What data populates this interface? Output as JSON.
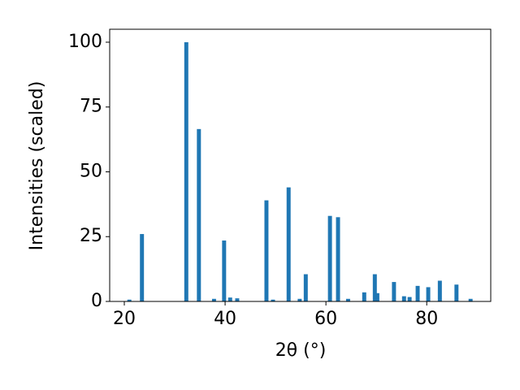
{
  "chart_data": {
    "type": "bar",
    "x_label": "2θ (°)",
    "y_label": "Intensities (scaled)",
    "x": [
      21.0,
      23.5,
      32.3,
      34.8,
      37.8,
      39.8,
      41.0,
      42.4,
      48.2,
      49.5,
      52.6,
      54.8,
      56.0,
      60.8,
      62.4,
      64.4,
      67.6,
      69.7,
      70.2,
      73.5,
      75.5,
      76.6,
      78.2,
      80.3,
      82.6,
      85.9,
      88.7
    ],
    "values": [
      0.7,
      26,
      100,
      66.5,
      1,
      23.5,
      1.5,
      1.2,
      39,
      0.7,
      44,
      1,
      10.5,
      33,
      32.5,
      1,
      3.5,
      10.5,
      3.2,
      7.5,
      2,
      1.7,
      6,
      5.5,
      8,
      6.5,
      1
    ],
    "color": "#1f77b4",
    "xlim": [
      17.1,
      92.7
    ],
    "ylim": [
      0,
      105
    ],
    "xticks": [
      20,
      40,
      60,
      80
    ],
    "yticks": [
      0,
      25,
      50,
      75,
      100
    ],
    "grid": false
  }
}
